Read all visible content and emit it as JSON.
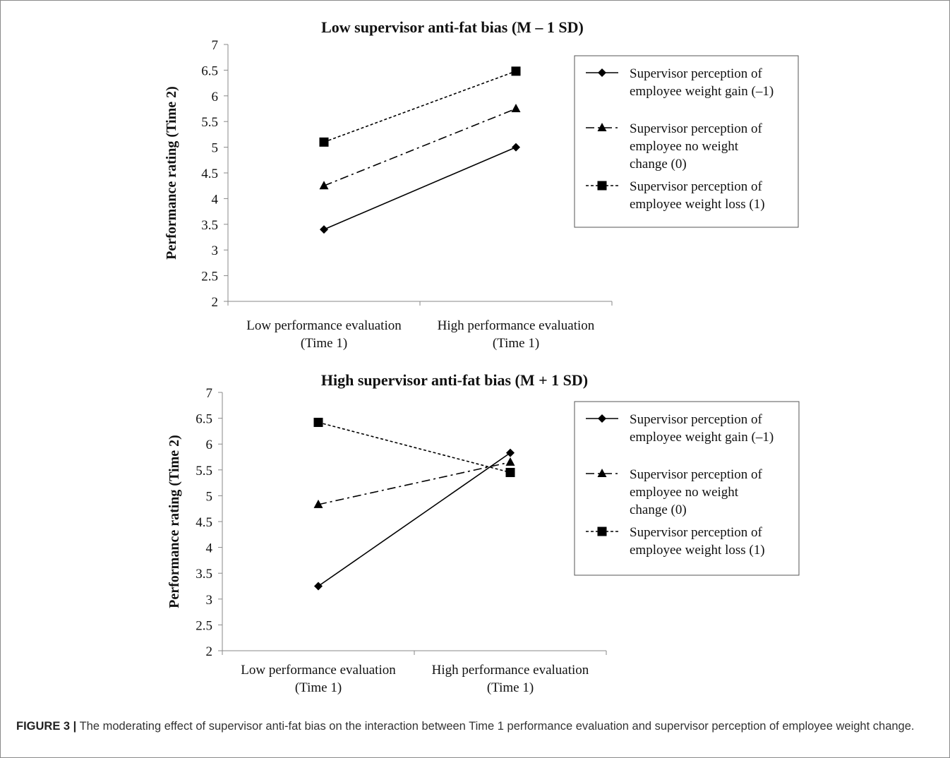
{
  "caption": {
    "label": "FIGURE 3 |",
    "text": "The moderating effect of supervisor anti-fat bias on the interaction between Time 1 performance evaluation and supervisor perception of employee weight change."
  },
  "chart_data": [
    {
      "type": "line",
      "title": "Low supervisor anti-fat bias (M – 1 SD)",
      "xlabel": "",
      "ylabel": "Performance rating (Time 2)",
      "ylim": [
        2,
        7
      ],
      "yticks": [
        "2",
        "2.5",
        "3",
        "3.5",
        "4",
        "4.5",
        "5",
        "5.5",
        "6",
        "6.5",
        "7"
      ],
      "categories": [
        [
          "Low performance evaluation",
          "(Time 1)"
        ],
        [
          "High performance evaluation",
          "(Time 1)"
        ]
      ],
      "legend_position": "right",
      "series": [
        {
          "name": [
            "Supervisor perception of",
            "employee weight gain (–1)"
          ],
          "marker": "diamond",
          "dash": "solid",
          "values": [
            3.4,
            5.0
          ]
        },
        {
          "name": [
            "Supervisor perception of",
            "employee no weight",
            "change (0)"
          ],
          "marker": "triangle",
          "dash": "dashdot",
          "values": [
            4.25,
            5.75
          ]
        },
        {
          "name": [
            "Supervisor perception of",
            "employee weight loss (1)"
          ],
          "marker": "square",
          "dash": "dotted",
          "values": [
            5.1,
            6.48
          ]
        }
      ]
    },
    {
      "type": "line",
      "title": "High supervisor anti-fat bias (M + 1 SD)",
      "xlabel": "",
      "ylabel": "Performance rating (Time 2)",
      "ylim": [
        2,
        7
      ],
      "yticks": [
        "2",
        "2.5",
        "3",
        "3.5",
        "4",
        "4.5",
        "5",
        "5.5",
        "6",
        "6.5",
        "7"
      ],
      "categories": [
        [
          "Low performance evaluation",
          "(Time 1)"
        ],
        [
          "High performance evaluation",
          "(Time 1)"
        ]
      ],
      "legend_position": "right",
      "series": [
        {
          "name": [
            "Supervisor perception of",
            "employee weight gain (–1)"
          ],
          "marker": "diamond",
          "dash": "solid",
          "values": [
            3.25,
            5.83
          ]
        },
        {
          "name": [
            "Supervisor perception of",
            "employee no weight",
            "change (0)"
          ],
          "marker": "triangle",
          "dash": "dashdot",
          "values": [
            4.83,
            5.65
          ]
        },
        {
          "name": [
            "Supervisor perception of",
            "employee weight loss (1)"
          ],
          "marker": "square",
          "dash": "dotted",
          "values": [
            6.42,
            5.45
          ]
        }
      ]
    }
  ]
}
